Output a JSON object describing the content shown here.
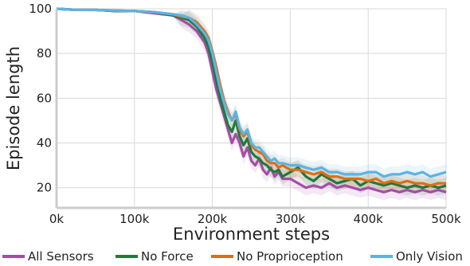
{
  "chart_data": {
    "type": "line",
    "title": "",
    "xlabel": "Environment steps",
    "ylabel": "Episode length",
    "xlim": [
      0,
      500000
    ],
    "ylim": [
      11,
      100
    ],
    "x_ticks": [
      {
        "value": 0,
        "label": "0k"
      },
      {
        "value": 100000,
        "label": "100k"
      },
      {
        "value": 200000,
        "label": "200k"
      },
      {
        "value": 300000,
        "label": "300k"
      },
      {
        "value": 400000,
        "label": "400k"
      },
      {
        "value": 500000,
        "label": "500k"
      }
    ],
    "y_ticks": [
      {
        "value": 20,
        "label": "20"
      },
      {
        "value": 40,
        "label": "40"
      },
      {
        "value": 60,
        "label": "60"
      },
      {
        "value": 80,
        "label": "80"
      },
      {
        "value": 100,
        "label": "100"
      }
    ],
    "grid": true,
    "legend_position": "bottom",
    "x": [
      0,
      25000,
      50000,
      75000,
      100000,
      125000,
      150000,
      160000,
      170000,
      180000,
      190000,
      195000,
      200000,
      205000,
      210000,
      215000,
      220000,
      225000,
      230000,
      235000,
      240000,
      245000,
      250000,
      255000,
      260000,
      265000,
      270000,
      275000,
      280000,
      285000,
      290000,
      300000,
      310000,
      320000,
      330000,
      340000,
      350000,
      360000,
      370000,
      380000,
      390000,
      400000,
      410000,
      420000,
      430000,
      440000,
      450000,
      460000,
      470000,
      480000,
      490000,
      500000
    ],
    "series": [
      {
        "name": "All Sensors",
        "color": "#a64ca6",
        "values": [
          100,
          99.5,
          99.5,
          99,
          99,
          98,
          97,
          95,
          93,
          90,
          85,
          80,
          72,
          64,
          58,
          52,
          46,
          40,
          44,
          40,
          34,
          38,
          32,
          30,
          33,
          28,
          26,
          29,
          25,
          27,
          24,
          24,
          22,
          20,
          21,
          20,
          22,
          20,
          21,
          20,
          19,
          20,
          19,
          18,
          19,
          18,
          19,
          18,
          19,
          18,
          19,
          18
        ]
      },
      {
        "name": "No Force",
        "color": "#1f7a3a",
        "values": [
          100,
          99.5,
          99.5,
          99,
          99,
          98.5,
          97,
          96,
          95,
          92,
          87,
          83,
          76,
          68,
          60,
          54,
          48,
          45,
          50,
          43,
          39,
          42,
          36,
          34,
          33,
          31,
          30,
          28,
          27,
          28,
          25,
          27,
          29,
          25,
          23,
          26,
          24,
          22,
          23,
          24,
          21,
          23,
          22,
          21,
          22,
          21,
          20,
          21,
          20,
          21,
          20,
          21
        ]
      },
      {
        "name": "No Proprioception",
        "color": "#e06c14",
        "values": [
          100,
          99.5,
          99.5,
          99.2,
          99,
          98.5,
          97.5,
          96.5,
          96,
          94,
          90,
          87,
          81,
          74,
          66,
          59,
          54,
          50,
          53,
          46,
          43,
          45,
          39,
          37,
          36,
          35,
          32,
          31,
          31,
          29,
          30,
          28,
          28,
          27,
          26,
          27,
          25,
          25,
          24,
          24,
          24,
          23,
          24,
          22,
          23,
          22,
          23,
          22,
          22,
          21,
          22,
          22
        ]
      },
      {
        "name": "Only Vision",
        "color": "#5ab4e5",
        "values": [
          100,
          99.5,
          99.5,
          99.2,
          99,
          98.5,
          97.5,
          97,
          96,
          93,
          89,
          86,
          80,
          72,
          64,
          58,
          53,
          50,
          54,
          47,
          44,
          46,
          40,
          38,
          38,
          36,
          34,
          32,
          33,
          31,
          31,
          30,
          30,
          29,
          28,
          29,
          27,
          27,
          26,
          26,
          26,
          27,
          27,
          25,
          26,
          26,
          27,
          26,
          27,
          25,
          26,
          27
        ]
      }
    ]
  }
}
